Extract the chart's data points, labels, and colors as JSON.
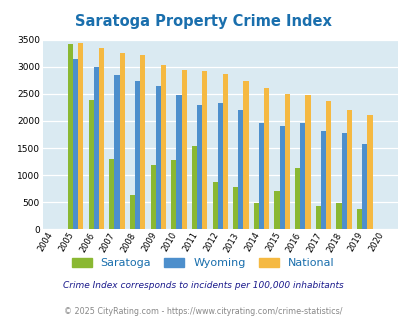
{
  "title": "Saratoga Property Crime Index",
  "years": [
    2004,
    2005,
    2006,
    2007,
    2008,
    2009,
    2010,
    2011,
    2012,
    2013,
    2014,
    2015,
    2016,
    2017,
    2018,
    2019,
    2020
  ],
  "saratoga": [
    0,
    3420,
    2380,
    1290,
    640,
    1190,
    1270,
    1530,
    880,
    790,
    490,
    700,
    1130,
    430,
    490,
    380,
    0
  ],
  "wyoming": [
    0,
    3150,
    2990,
    2850,
    2730,
    2640,
    2470,
    2290,
    2330,
    2210,
    1960,
    1900,
    1970,
    1820,
    1770,
    1570,
    0
  ],
  "national": [
    0,
    3430,
    3340,
    3260,
    3210,
    3040,
    2940,
    2920,
    2860,
    2730,
    2600,
    2490,
    2470,
    2360,
    2200,
    2110,
    0
  ],
  "saratoga_color": "#8ab832",
  "wyoming_color": "#4d8fcc",
  "national_color": "#f5b942",
  "bg_color": "#daeaf2",
  "ylim": [
    0,
    3500
  ],
  "yticks": [
    0,
    500,
    1000,
    1500,
    2000,
    2500,
    3000,
    3500
  ],
  "legend_labels": [
    "Saratoga",
    "Wyoming",
    "National"
  ],
  "footnote1": "Crime Index corresponds to incidents per 100,000 inhabitants",
  "footnote2": "© 2025 CityRating.com - https://www.cityrating.com/crime-statistics/",
  "title_color": "#1a6fad",
  "footnote1_color": "#1a1a8c",
  "footnote2_color": "#888888",
  "legend_color": "#1a6fad",
  "bar_width": 0.25
}
